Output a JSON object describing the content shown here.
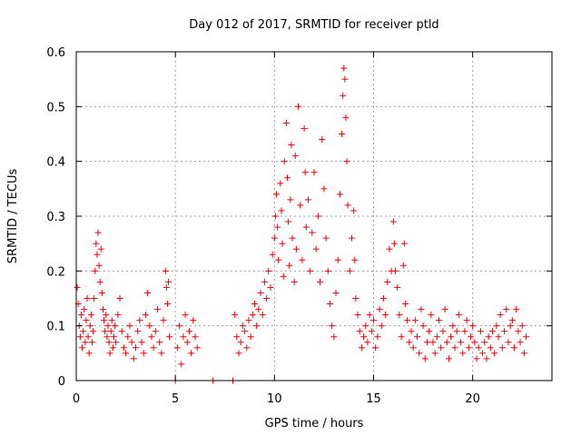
{
  "chart_data": {
    "type": "scatter",
    "title": "Day 012 of 2017, SRMTID for receiver ptld",
    "xlabel": "GPS time / hours",
    "ylabel": "SRMTID / TECUs",
    "xlim": [
      0,
      24
    ],
    "ylim": [
      0,
      0.6
    ],
    "xticks": [
      0,
      5,
      10,
      15,
      20
    ],
    "yticks": [
      0,
      0.1,
      0.2,
      0.3,
      0.4,
      0.5,
      0.6
    ],
    "xtick_labels": [
      "0",
      "5",
      "10",
      "15",
      "20"
    ],
    "ytick_labels": [
      "0",
      "0.1",
      "0.2",
      "0.3",
      "0.4",
      "0.5",
      "0.6"
    ],
    "grid": true,
    "marker": "+",
    "marker_color": "#ee0000",
    "series": [
      {
        "name": "SRMTID",
        "points": [
          [
            0.05,
            0.17
          ],
          [
            0.1,
            0.14
          ],
          [
            0.15,
            0.1
          ],
          [
            0.2,
            0.08
          ],
          [
            0.25,
            0.12
          ],
          [
            0.3,
            0.06
          ],
          [
            0.35,
            0.09
          ],
          [
            0.4,
            0.13
          ],
          [
            0.45,
            0.07
          ],
          [
            0.5,
            0.11
          ],
          [
            0.55,
            0.15
          ],
          [
            0.6,
            0.08
          ],
          [
            0.65,
            0.05
          ],
          [
            0.7,
            0.1
          ],
          [
            0.75,
            0.12
          ],
          [
            0.8,
            0.07
          ],
          [
            0.85,
            0.09
          ],
          [
            0.9,
            0.15
          ],
          [
            0.95,
            0.2
          ],
          [
            1.0,
            0.25
          ],
          [
            1.05,
            0.23
          ],
          [
            1.1,
            0.27
          ],
          [
            1.15,
            0.21
          ],
          [
            1.2,
            0.18
          ],
          [
            1.25,
            0.24
          ],
          [
            1.3,
            0.16
          ],
          [
            1.35,
            0.13
          ],
          [
            1.4,
            0.11
          ],
          [
            1.45,
            0.09
          ],
          [
            1.5,
            0.12
          ],
          [
            1.55,
            0.08
          ],
          [
            1.6,
            0.1
          ],
          [
            1.65,
            0.07
          ],
          [
            1.7,
            0.05
          ],
          [
            1.75,
            0.09
          ],
          [
            1.8,
            0.11
          ],
          [
            1.85,
            0.06
          ],
          [
            1.9,
            0.08
          ],
          [
            1.95,
            0.1
          ],
          [
            2.0,
            0.07
          ],
          [
            2.1,
            0.12
          ],
          [
            2.2,
            0.15
          ],
          [
            2.3,
            0.09
          ],
          [
            2.4,
            0.06
          ],
          [
            2.5,
            0.05
          ],
          [
            2.6,
            0.08
          ],
          [
            2.7,
            0.1
          ],
          [
            2.8,
            0.07
          ],
          [
            2.9,
            0.04
          ],
          [
            3.0,
            0.06
          ],
          [
            3.1,
            0.09
          ],
          [
            3.2,
            0.11
          ],
          [
            3.3,
            0.07
          ],
          [
            3.4,
            0.05
          ],
          [
            3.5,
            0.12
          ],
          [
            3.6,
            0.16
          ],
          [
            3.7,
            0.1
          ],
          [
            3.8,
            0.08
          ],
          [
            3.9,
            0.06
          ],
          [
            4.0,
            0.09
          ],
          [
            4.1,
            0.13
          ],
          [
            4.2,
            0.07
          ],
          [
            4.3,
            0.05
          ],
          [
            4.4,
            0.11
          ],
          [
            4.5,
            0.2
          ],
          [
            4.55,
            0.17
          ],
          [
            4.6,
            0.14
          ],
          [
            4.65,
            0.18
          ],
          [
            4.7,
            0.08
          ],
          [
            5.0,
            0.0
          ],
          [
            5.1,
            0.06
          ],
          [
            5.2,
            0.1
          ],
          [
            5.3,
            0.03
          ],
          [
            5.4,
            0.08
          ],
          [
            5.5,
            0.12
          ],
          [
            5.6,
            0.07
          ],
          [
            5.7,
            0.09
          ],
          [
            5.8,
            0.05
          ],
          [
            5.9,
            0.11
          ],
          [
            6.0,
            0.08
          ],
          [
            6.1,
            0.06
          ],
          [
            6.9,
            0.0
          ],
          [
            7.9,
            0.0
          ],
          [
            8.0,
            0.12
          ],
          [
            8.1,
            0.08
          ],
          [
            8.2,
            0.05
          ],
          [
            8.3,
            0.07
          ],
          [
            8.4,
            0.1
          ],
          [
            8.5,
            0.09
          ],
          [
            8.6,
            0.06
          ],
          [
            8.7,
            0.11
          ],
          [
            8.8,
            0.08
          ],
          [
            8.9,
            0.12
          ],
          [
            9.0,
            0.14
          ],
          [
            9.1,
            0.1
          ],
          [
            9.2,
            0.13
          ],
          [
            9.3,
            0.16
          ],
          [
            9.4,
            0.12
          ],
          [
            9.5,
            0.18
          ],
          [
            9.6,
            0.15
          ],
          [
            9.7,
            0.2
          ],
          [
            9.8,
            0.17
          ],
          [
            9.9,
            0.23
          ],
          [
            10.0,
            0.26
          ],
          [
            10.05,
            0.3
          ],
          [
            10.1,
            0.34
          ],
          [
            10.15,
            0.28
          ],
          [
            10.2,
            0.22
          ],
          [
            10.3,
            0.36
          ],
          [
            10.35,
            0.31
          ],
          [
            10.4,
            0.25
          ],
          [
            10.45,
            0.19
          ],
          [
            10.5,
            0.4
          ],
          [
            10.6,
            0.47
          ],
          [
            10.65,
            0.37
          ],
          [
            10.7,
            0.29
          ],
          [
            10.75,
            0.21
          ],
          [
            10.8,
            0.33
          ],
          [
            10.85,
            0.43
          ],
          [
            10.9,
            0.26
          ],
          [
            11.0,
            0.18
          ],
          [
            11.05,
            0.41
          ],
          [
            11.1,
            0.24
          ],
          [
            11.2,
            0.5
          ],
          [
            11.3,
            0.32
          ],
          [
            11.4,
            0.22
          ],
          [
            11.5,
            0.46
          ],
          [
            11.55,
            0.38
          ],
          [
            11.6,
            0.28
          ],
          [
            11.7,
            0.33
          ],
          [
            11.8,
            0.2
          ],
          [
            11.9,
            0.27
          ],
          [
            12.0,
            0.38
          ],
          [
            12.1,
            0.24
          ],
          [
            12.2,
            0.3
          ],
          [
            12.3,
            0.18
          ],
          [
            12.4,
            0.44
          ],
          [
            12.5,
            0.35
          ],
          [
            12.6,
            0.26
          ],
          [
            12.7,
            0.2
          ],
          [
            12.8,
            0.14
          ],
          [
            12.9,
            0.1
          ],
          [
            13.0,
            0.08
          ],
          [
            13.1,
            0.16
          ],
          [
            13.2,
            0.22
          ],
          [
            13.3,
            0.34
          ],
          [
            13.4,
            0.45
          ],
          [
            13.45,
            0.52
          ],
          [
            13.5,
            0.57
          ],
          [
            13.55,
            0.55
          ],
          [
            13.6,
            0.48
          ],
          [
            13.65,
            0.4
          ],
          [
            13.7,
            0.32
          ],
          [
            13.8,
            0.2
          ],
          [
            13.9,
            0.26
          ],
          [
            14.0,
            0.31
          ],
          [
            14.05,
            0.22
          ],
          [
            14.1,
            0.15
          ],
          [
            14.2,
            0.12
          ],
          [
            14.3,
            0.09
          ],
          [
            14.4,
            0.06
          ],
          [
            14.5,
            0.08
          ],
          [
            14.6,
            0.1
          ],
          [
            14.7,
            0.07
          ],
          [
            14.8,
            0.12
          ],
          [
            14.9,
            0.09
          ],
          [
            15.0,
            0.11
          ],
          [
            15.1,
            0.06
          ],
          [
            15.2,
            0.08
          ],
          [
            15.3,
            0.13
          ],
          [
            15.4,
            0.1
          ],
          [
            15.5,
            0.15
          ],
          [
            15.6,
            0.12
          ],
          [
            15.7,
            0.18
          ],
          [
            15.8,
            0.24
          ],
          [
            15.9,
            0.2
          ],
          [
            16.0,
            0.29
          ],
          [
            16.05,
            0.25
          ],
          [
            16.1,
            0.2
          ],
          [
            16.2,
            0.17
          ],
          [
            16.3,
            0.12
          ],
          [
            16.4,
            0.08
          ],
          [
            16.5,
            0.21
          ],
          [
            16.55,
            0.25
          ],
          [
            16.6,
            0.14
          ],
          [
            16.7,
            0.11
          ],
          [
            16.8,
            0.07
          ],
          [
            16.9,
            0.09
          ],
          [
            17.0,
            0.06
          ],
          [
            17.1,
            0.11
          ],
          [
            17.2,
            0.08
          ],
          [
            17.3,
            0.05
          ],
          [
            17.4,
            0.13
          ],
          [
            17.5,
            0.1
          ],
          [
            17.6,
            0.04
          ],
          [
            17.7,
            0.07
          ],
          [
            17.8,
            0.09
          ],
          [
            17.9,
            0.12
          ],
          [
            18.0,
            0.07
          ],
          [
            18.1,
            0.05
          ],
          [
            18.2,
            0.08
          ],
          [
            18.3,
            0.11
          ],
          [
            18.4,
            0.06
          ],
          [
            18.5,
            0.09
          ],
          [
            18.6,
            0.13
          ],
          [
            18.7,
            0.07
          ],
          [
            18.8,
            0.04
          ],
          [
            18.9,
            0.08
          ],
          [
            19.0,
            0.1
          ],
          [
            19.1,
            0.06
          ],
          [
            19.2,
            0.09
          ],
          [
            19.3,
            0.12
          ],
          [
            19.4,
            0.07
          ],
          [
            19.5,
            0.05
          ],
          [
            19.6,
            0.09
          ],
          [
            19.7,
            0.11
          ],
          [
            19.8,
            0.06
          ],
          [
            19.9,
            0.08
          ],
          [
            20.0,
            0.1
          ],
          [
            20.1,
            0.07
          ],
          [
            20.2,
            0.04
          ],
          [
            20.3,
            0.06
          ],
          [
            20.4,
            0.09
          ],
          [
            20.5,
            0.05
          ],
          [
            20.6,
            0.07
          ],
          [
            20.7,
            0.04
          ],
          [
            20.8,
            0.08
          ],
          [
            20.9,
            0.06
          ],
          [
            21.0,
            0.09
          ],
          [
            21.1,
            0.05
          ],
          [
            21.2,
            0.1
          ],
          [
            21.3,
            0.08
          ],
          [
            21.4,
            0.12
          ],
          [
            21.5,
            0.06
          ],
          [
            21.6,
            0.09
          ],
          [
            21.7,
            0.13
          ],
          [
            21.8,
            0.07
          ],
          [
            21.9,
            0.1
          ],
          [
            22.0,
            0.11
          ],
          [
            22.1,
            0.06
          ],
          [
            22.2,
            0.13
          ],
          [
            22.3,
            0.09
          ],
          [
            22.4,
            0.07
          ],
          [
            22.5,
            0.1
          ],
          [
            22.6,
            0.05
          ],
          [
            22.7,
            0.08
          ]
        ]
      }
    ]
  }
}
